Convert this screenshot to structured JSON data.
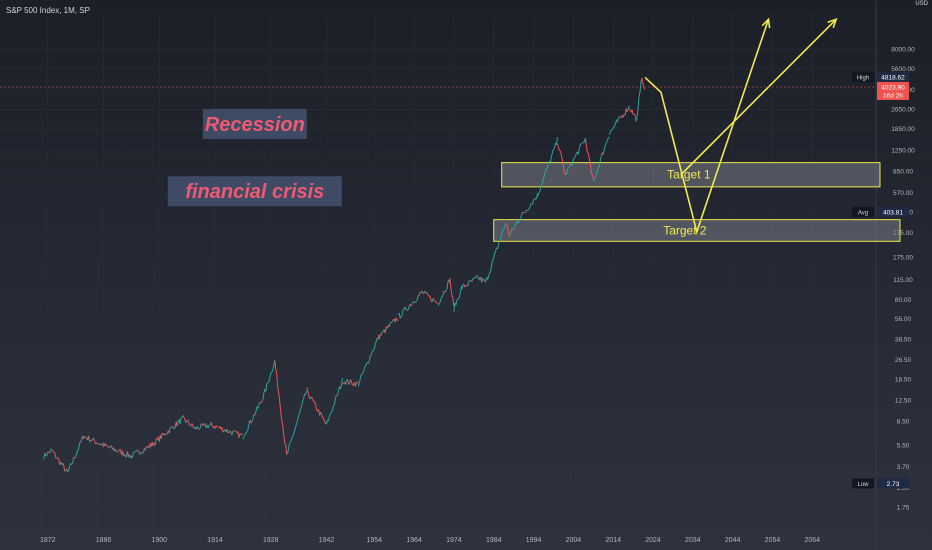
{
  "header": {
    "symbol_line": "S&P 500 Index, 1M, SP",
    "currency": "USD"
  },
  "chart_data": {
    "type": "line",
    "title": "S&P 500 Index, 1M, SP",
    "y_scale": "log",
    "ylim": [
      1.2,
      16000
    ],
    "xlim": [
      1860,
      2080
    ],
    "x_ticks": [
      "1872",
      "1886",
      "1900",
      "1914",
      "1928",
      "1942",
      "1954",
      "1964",
      "1974",
      "1984",
      "1994",
      "2004",
      "2014",
      "2024",
      "2034",
      "2044",
      "2054",
      "2064"
    ],
    "y_ticks": [
      "8000.00",
      "5600.00",
      "3800.00",
      "2650.00",
      "1850.00",
      "1250.00",
      "850.00",
      "570.00",
      "400.00",
      "275.00",
      "175.00",
      "115.00",
      "80.00",
      "56.00",
      "38.50",
      "26.50",
      "18.50",
      "12.50",
      "8.50",
      "5.50",
      "3.70",
      "2.50",
      "1.75"
    ],
    "series": [
      {
        "values_x": [
          1871,
          1873,
          1877,
          1881,
          1886,
          1893,
          1898,
          1906,
          1909,
          1913,
          1921,
          1926,
          1929,
          1932,
          1937,
          1942,
          1946,
          1950,
          1955,
          1960,
          1966,
          1970,
          1973,
          1974,
          1976,
          1980,
          1982,
          1987,
          1988,
          1990,
          1995,
          2000,
          2002,
          2007,
          2009,
          2013,
          2015,
          2018,
          2020,
          2021,
          2022
        ],
        "values_y": [
          4.5,
          5,
          3.3,
          6.5,
          5.5,
          4.5,
          5.5,
          9,
          7.5,
          8,
          6.5,
          13,
          26,
          4.5,
          15,
          8,
          18,
          17,
          40,
          58,
          92,
          75,
          115,
          68,
          100,
          120,
          110,
          330,
          260,
          340,
          550,
          1500,
          800,
          1550,
          700,
          1700,
          2100,
          2800,
          2200,
          4700,
          3850
        ]
      }
    ],
    "price_labels": {
      "high": "4818.62",
      "last": "4023.90",
      "countdown": "16d 2h",
      "avg": "403.81",
      "low": "2.73"
    },
    "price_label_names": {
      "high": "High",
      "avg": "Avg",
      "low": "Low"
    },
    "annotations": [
      {
        "text": "Recession",
        "x": 1924,
        "y": 2000,
        "color": "#ef5a72"
      },
      {
        "text": "financial crisis",
        "x": 1924,
        "y": 580,
        "color": "#ef5a72"
      }
    ],
    "zones": [
      {
        "label": "Target 1",
        "x1": 1986,
        "x2": 2081,
        "y_low": 640,
        "y_high": 1000
      },
      {
        "label": "Target 2",
        "x1": 1984,
        "x2": 2100,
        "y_low": 235,
        "y_high": 350
      }
    ],
    "projection_color": "#f2e94e",
    "projections": [
      {
        "points": [
          [
            2022,
            4800
          ],
          [
            2026,
            3650
          ],
          [
            2035,
            280
          ],
          [
            2053,
            14000
          ]
        ]
      },
      {
        "points": [
          [
            2031,
            800
          ],
          [
            2070,
            14000
          ]
        ]
      }
    ],
    "colors": {
      "up": "#26a69a",
      "down": "#ef5350",
      "zone_fill": "#787b86",
      "zone_border": "#f2e94e"
    }
  }
}
